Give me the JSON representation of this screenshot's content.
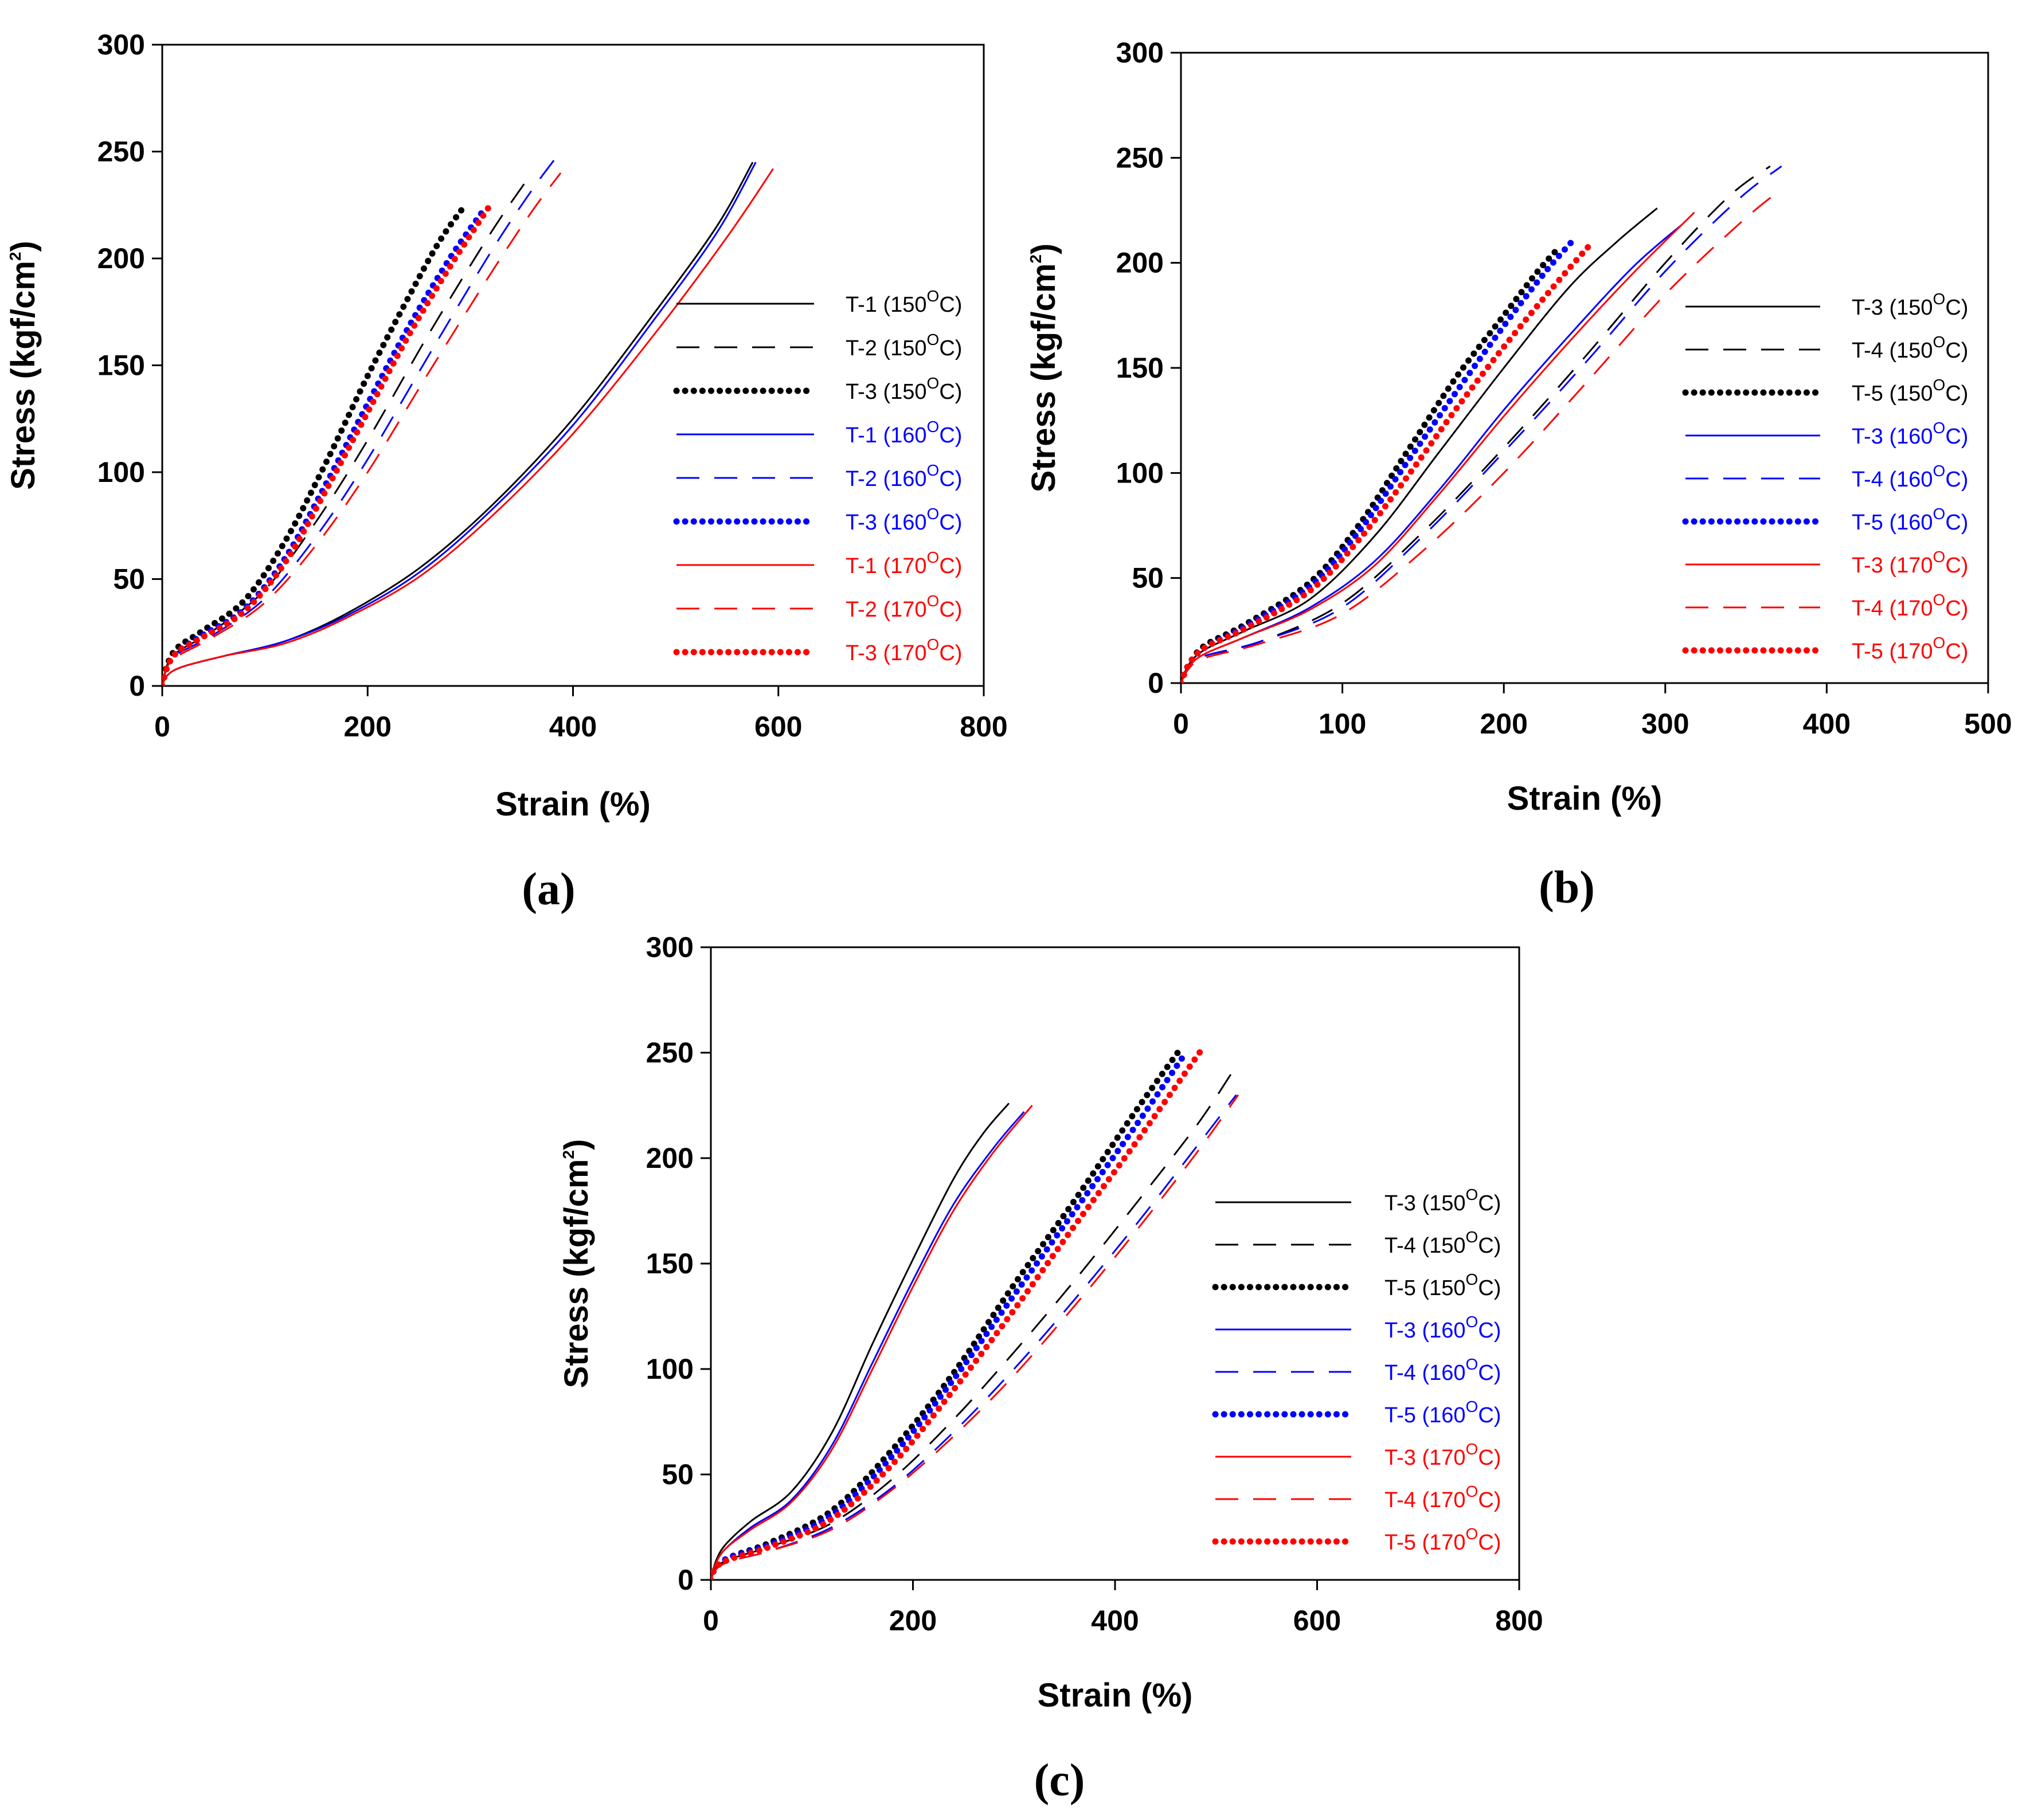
{
  "colors": {
    "black": "#000000",
    "blue": "#0000ff",
    "red": "#ff0000"
  },
  "chart_data": [
    {
      "panel": "a",
      "type": "line",
      "panel_label": "(a)",
      "xlabel": "Strain (%)",
      "ylabel": {
        "main": "Stress (kgf/cm",
        "sup": "2",
        "tail": ")"
      },
      "xlim": [
        0,
        800
      ],
      "ylim": [
        0,
        300
      ],
      "xticks": [
        0,
        200,
        400,
        600,
        800
      ],
      "yticks": [
        0,
        50,
        100,
        150,
        200,
        250,
        300
      ],
      "legend_position": "center-right",
      "series": [
        {
          "name": "T-1",
          "temp": "150",
          "color": "#000000",
          "style": "solid",
          "x": [
            0,
            5,
            20,
            60,
            120,
            180,
            250,
            320,
            400,
            480,
            540,
            575
          ],
          "y": [
            0,
            5,
            9,
            14,
            21,
            34,
            55,
            84,
            125,
            175,
            215,
            245
          ]
        },
        {
          "name": "T-2",
          "temp": "150",
          "color": "#000000",
          "style": "dashed",
          "x": [
            0,
            5,
            15,
            50,
            100,
            150,
            200,
            260,
            320,
            360
          ],
          "y": [
            0,
            10,
            16,
            26,
            45,
            77,
            115,
            165,
            212,
            240
          ]
        },
        {
          "name": "T-3",
          "temp": "150",
          "color": "#000000",
          "style": "dotted",
          "x": [
            0,
            5,
            15,
            40,
            80,
            120,
            160,
            200,
            240,
            270,
            295
          ],
          "y": [
            0,
            10,
            18,
            26,
            40,
            68,
            105,
            145,
            182,
            208,
            225
          ]
        },
        {
          "name": "T-1",
          "temp": "160",
          "color": "#0000ff",
          "style": "solid",
          "x": [
            0,
            5,
            20,
            60,
            120,
            180,
            250,
            320,
            400,
            480,
            540,
            578
          ],
          "y": [
            0,
            5,
            9,
            14,
            21,
            33,
            53,
            82,
            122,
            172,
            212,
            245
          ]
        },
        {
          "name": "T-2",
          "temp": "160",
          "color": "#0000ff",
          "style": "dashed",
          "x": [
            0,
            5,
            15,
            50,
            100,
            150,
            200,
            260,
            320,
            360,
            388
          ],
          "y": [
            0,
            9,
            15,
            24,
            41,
            70,
            106,
            155,
            203,
            232,
            250
          ]
        },
        {
          "name": "T-3",
          "temp": "160",
          "color": "#0000ff",
          "style": "dotted",
          "x": [
            0,
            5,
            15,
            40,
            80,
            120,
            160,
            200,
            240,
            280,
            312
          ],
          "y": [
            0,
            9,
            16,
            24,
            36,
            60,
            95,
            132,
            168,
            200,
            222
          ]
        },
        {
          "name": "T-1",
          "temp": "170",
          "color": "#ff0000",
          "style": "solid",
          "x": [
            0,
            5,
            20,
            60,
            120,
            180,
            250,
            320,
            400,
            480,
            550,
            595
          ],
          "y": [
            0,
            5,
            9,
            14,
            20,
            32,
            51,
            79,
            118,
            165,
            210,
            242
          ]
        },
        {
          "name": "T-2",
          "temp": "170",
          "color": "#ff0000",
          "style": "dashed",
          "x": [
            0,
            5,
            15,
            50,
            100,
            150,
            200,
            260,
            320,
            360,
            388
          ],
          "y": [
            0,
            9,
            14,
            23,
            39,
            66,
            100,
            147,
            193,
            222,
            240
          ]
        },
        {
          "name": "T-3",
          "temp": "170",
          "color": "#ff0000",
          "style": "dotted",
          "x": [
            0,
            5,
            15,
            40,
            80,
            120,
            160,
            200,
            240,
            280,
            318
          ],
          "y": [
            0,
            9,
            16,
            23,
            35,
            58,
            92,
            128,
            164,
            196,
            224
          ]
        }
      ]
    },
    {
      "panel": "b",
      "type": "line",
      "panel_label": "(b)",
      "xlabel": "Strain (%)",
      "ylabel": {
        "main": "Stress (kgf/cm",
        "sup": "2",
        "tail": ")"
      },
      "xlim": [
        0,
        500
      ],
      "ylim": [
        0,
        300
      ],
      "xticks": [
        0,
        100,
        200,
        300,
        400,
        500
      ],
      "yticks": [
        0,
        50,
        100,
        150,
        200,
        250,
        300
      ],
      "legend_position": "center-right",
      "series": [
        {
          "name": "T-3",
          "temp": "150",
          "color": "#000000",
          "style": "solid",
          "x": [
            0,
            5,
            15,
            40,
            80,
            120,
            160,
            200,
            240,
            270,
            295
          ],
          "y": [
            0,
            9,
            16,
            25,
            40,
            70,
            110,
            150,
            188,
            210,
            226
          ]
        },
        {
          "name": "T-4",
          "temp": "150",
          "color": "#000000",
          "style": "dashed",
          "x": [
            0,
            5,
            15,
            50,
            100,
            150,
            200,
            250,
            300,
            340,
            365
          ],
          "y": [
            0,
            8,
            13,
            20,
            38,
            72,
            112,
            155,
            200,
            232,
            246
          ]
        },
        {
          "name": "T-5",
          "temp": "150",
          "color": "#000000",
          "style": "dotted",
          "x": [
            0,
            5,
            15,
            40,
            80,
            110,
            140,
            170,
            200,
            220,
            235
          ],
          "y": [
            0,
            9,
            18,
            28,
            48,
            75,
            110,
            145,
            175,
            195,
            208
          ]
        },
        {
          "name": "T-3",
          "temp": "160",
          "color": "#0000ff",
          "style": "solid",
          "x": [
            0,
            5,
            15,
            40,
            80,
            120,
            160,
            200,
            240,
            280,
            310
          ],
          "y": [
            0,
            8,
            14,
            22,
            36,
            58,
            92,
            130,
            165,
            198,
            218
          ]
        },
        {
          "name": "T-4",
          "temp": "160",
          "color": "#0000ff",
          "style": "dashed",
          "x": [
            0,
            5,
            15,
            50,
            100,
            150,
            200,
            250,
            300,
            345,
            372
          ],
          "y": [
            0,
            8,
            13,
            20,
            36,
            70,
            110,
            152,
            196,
            230,
            246
          ]
        },
        {
          "name": "T-5",
          "temp": "160",
          "color": "#0000ff",
          "style": "dotted",
          "x": [
            0,
            5,
            15,
            40,
            80,
            110,
            140,
            170,
            200,
            225,
            242
          ],
          "y": [
            0,
            9,
            17,
            27,
            46,
            72,
            105,
            138,
            170,
            195,
            210
          ]
        },
        {
          "name": "T-3",
          "temp": "170",
          "color": "#ff0000",
          "style": "solid",
          "x": [
            0,
            5,
            15,
            40,
            80,
            120,
            160,
            200,
            240,
            280,
            318
          ],
          "y": [
            0,
            8,
            14,
            22,
            35,
            56,
            90,
            127,
            162,
            195,
            224
          ]
        },
        {
          "name": "T-4",
          "temp": "170",
          "color": "#ff0000",
          "style": "dashed",
          "x": [
            0,
            5,
            15,
            50,
            100,
            150,
            200,
            250,
            300,
            345,
            370
          ],
          "y": [
            0,
            7,
            12,
            19,
            33,
            63,
            100,
            142,
            185,
            218,
            234
          ]
        },
        {
          "name": "T-5",
          "temp": "170",
          "color": "#ff0000",
          "style": "dotted",
          "x": [
            0,
            5,
            15,
            40,
            80,
            110,
            140,
            170,
            200,
            230,
            255
          ],
          "y": [
            0,
            9,
            17,
            26,
            44,
            68,
            98,
            130,
            160,
            188,
            210
          ]
        }
      ]
    },
    {
      "panel": "c",
      "type": "line",
      "panel_label": "(c)",
      "xlabel": "Strain (%)",
      "ylabel": {
        "main": "Stress (kgf/cm",
        "sup": "2",
        "tail": ")"
      },
      "xlim": [
        0,
        800
      ],
      "ylim": [
        0,
        300
      ],
      "xticks": [
        0,
        200,
        400,
        600,
        800
      ],
      "yticks": [
        0,
        50,
        100,
        150,
        200,
        250,
        300
      ],
      "legend_position": "center-right",
      "series": [
        {
          "name": "T-3",
          "temp": "150",
          "color": "#000000",
          "style": "solid",
          "x": [
            0,
            5,
            15,
            40,
            80,
            120,
            160,
            200,
            240,
            270,
            295
          ],
          "y": [
            0,
            9,
            17,
            28,
            42,
            70,
            112,
            152,
            190,
            212,
            226
          ]
        },
        {
          "name": "T-4",
          "temp": "150",
          "color": "#000000",
          "style": "dashed",
          "x": [
            0,
            5,
            20,
            60,
            120,
            180,
            240,
            300,
            360,
            420,
            480,
            515
          ],
          "y": [
            0,
            6,
            10,
            16,
            27,
            48,
            76,
            108,
            142,
            178,
            215,
            240
          ]
        },
        {
          "name": "T-5",
          "temp": "150",
          "color": "#000000",
          "style": "dotted",
          "x": [
            0,
            5,
            20,
            60,
            120,
            180,
            240,
            300,
            360,
            420,
            465
          ],
          "y": [
            0,
            6,
            11,
            18,
            33,
            62,
            98,
            140,
            180,
            222,
            252
          ]
        },
        {
          "name": "T-3",
          "temp": "160",
          "color": "#0000ff",
          "style": "solid",
          "x": [
            0,
            5,
            15,
            40,
            80,
            120,
            160,
            200,
            240,
            280,
            310
          ],
          "y": [
            0,
            8,
            15,
            25,
            38,
            64,
            103,
            142,
            178,
            205,
            222
          ]
        },
        {
          "name": "T-4",
          "temp": "160",
          "color": "#0000ff",
          "style": "dashed",
          "x": [
            0,
            5,
            20,
            60,
            120,
            180,
            240,
            300,
            360,
            420,
            480,
            520
          ],
          "y": [
            0,
            5,
            9,
            14,
            25,
            44,
            70,
            100,
            133,
            168,
            205,
            230
          ]
        },
        {
          "name": "T-5",
          "temp": "160",
          "color": "#0000ff",
          "style": "dotted",
          "x": [
            0,
            5,
            20,
            60,
            120,
            180,
            240,
            300,
            360,
            420,
            470
          ],
          "y": [
            0,
            6,
            11,
            17,
            31,
            59,
            95,
            135,
            175,
            215,
            250
          ]
        },
        {
          "name": "T-3",
          "temp": "170",
          "color": "#ff0000",
          "style": "solid",
          "x": [
            0,
            5,
            15,
            40,
            80,
            120,
            160,
            200,
            240,
            280,
            318
          ],
          "y": [
            0,
            8,
            15,
            24,
            37,
            62,
            100,
            139,
            175,
            203,
            225
          ]
        },
        {
          "name": "T-4",
          "temp": "170",
          "color": "#ff0000",
          "style": "dashed",
          "x": [
            0,
            5,
            20,
            60,
            120,
            180,
            240,
            300,
            360,
            420,
            480,
            522
          ],
          "y": [
            0,
            5,
            9,
            14,
            24,
            43,
            68,
            97,
            130,
            165,
            202,
            230
          ]
        },
        {
          "name": "T-5",
          "temp": "170",
          "color": "#ff0000",
          "style": "dotted",
          "x": [
            0,
            5,
            20,
            60,
            120,
            180,
            240,
            300,
            360,
            420,
            488
          ],
          "y": [
            0,
            6,
            10,
            16,
            29,
            55,
            90,
            128,
            168,
            207,
            253
          ]
        }
      ]
    }
  ]
}
